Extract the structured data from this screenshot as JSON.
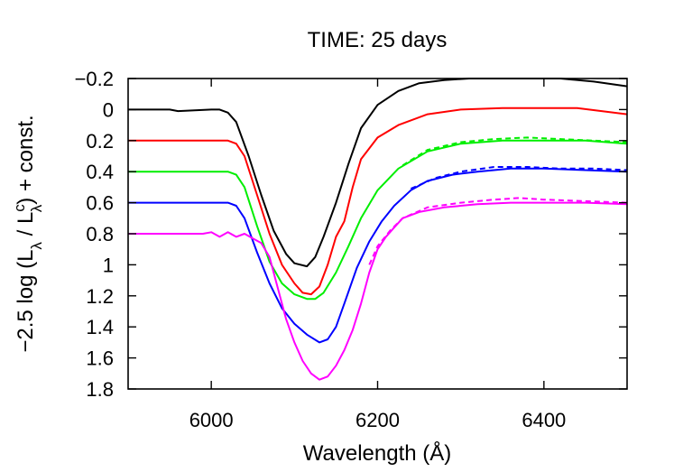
{
  "chart_data": {
    "type": "line",
    "title": "TIME: 25 days",
    "xlabel": "Wavelength (Å)",
    "ylabel_parts": {
      "prefix": "−2.5 log (L",
      "sub1": "λ",
      "mid": " / L",
      "sup": "c",
      "sub2": "λ",
      "suffix": ") + const."
    },
    "xlim": [
      5900,
      6500
    ],
    "ylim": [
      -0.2,
      1.8
    ],
    "y_inverted": true,
    "grid": false,
    "xticks": [
      6000,
      6200,
      6400
    ],
    "xtick_labels": [
      "6000",
      "6200",
      "6400"
    ],
    "yticks": [
      -0.2,
      0,
      0.2,
      0.4,
      0.6,
      0.8,
      1,
      1.2,
      1.4,
      1.6,
      1.8
    ],
    "ytick_labels": [
      "−0.2",
      "0",
      "0.2",
      "0.4",
      "0.6",
      "0.8",
      "1",
      "1.2",
      "1.4",
      "1.6",
      "1.8"
    ],
    "series": [
      {
        "color": "#000000",
        "dash": false,
        "points": [
          [
            5900,
            0
          ],
          [
            5950,
            0
          ],
          [
            5960,
            0.01
          ],
          [
            6000,
            0
          ],
          [
            6010,
            0
          ],
          [
            6020,
            0.02
          ],
          [
            6030,
            0.08
          ],
          [
            6045,
            0.3
          ],
          [
            6060,
            0.55
          ],
          [
            6075,
            0.78
          ],
          [
            6090,
            0.93
          ],
          [
            6100,
            0.99
          ],
          [
            6115,
            1.01
          ],
          [
            6125,
            0.95
          ],
          [
            6135,
            0.82
          ],
          [
            6150,
            0.6
          ],
          [
            6165,
            0.35
          ],
          [
            6180,
            0.12
          ],
          [
            6200,
            -0.03
          ],
          [
            6225,
            -0.12
          ],
          [
            6250,
            -0.17
          ],
          [
            6280,
            -0.19
          ],
          [
            6310,
            -0.2
          ],
          [
            6340,
            -0.2
          ],
          [
            6380,
            -0.2
          ],
          [
            6420,
            -0.2
          ],
          [
            6460,
            -0.18
          ],
          [
            6500,
            -0.15
          ]
        ]
      },
      {
        "color": "#ff0000",
        "dash": false,
        "points": [
          [
            5900,
            0.2
          ],
          [
            6000,
            0.2
          ],
          [
            6020,
            0.2
          ],
          [
            6030,
            0.22
          ],
          [
            6040,
            0.3
          ],
          [
            6055,
            0.55
          ],
          [
            6070,
            0.8
          ],
          [
            6085,
            1.0
          ],
          [
            6100,
            1.12
          ],
          [
            6110,
            1.18
          ],
          [
            6120,
            1.19
          ],
          [
            6130,
            1.14
          ],
          [
            6140,
            1.0
          ],
          [
            6150,
            0.82
          ],
          [
            6160,
            0.72
          ],
          [
            6170,
            0.5
          ],
          [
            6180,
            0.32
          ],
          [
            6200,
            0.18
          ],
          [
            6225,
            0.1
          ],
          [
            6260,
            0.03
          ],
          [
            6300,
            0
          ],
          [
            6350,
            -0.01
          ],
          [
            6400,
            -0.01
          ],
          [
            6440,
            -0.01
          ],
          [
            6500,
            0.03
          ]
        ]
      },
      {
        "color": "#00ee00",
        "dash": false,
        "points": [
          [
            5900,
            0.4
          ],
          [
            6020,
            0.4
          ],
          [
            6030,
            0.42
          ],
          [
            6040,
            0.5
          ],
          [
            6055,
            0.75
          ],
          [
            6070,
            0.98
          ],
          [
            6085,
            1.12
          ],
          [
            6100,
            1.19
          ],
          [
            6115,
            1.22
          ],
          [
            6125,
            1.22
          ],
          [
            6135,
            1.18
          ],
          [
            6150,
            1.05
          ],
          [
            6165,
            0.88
          ],
          [
            6180,
            0.7
          ],
          [
            6200,
            0.52
          ],
          [
            6225,
            0.38
          ],
          [
            6260,
            0.27
          ],
          [
            6300,
            0.22
          ],
          [
            6350,
            0.2
          ],
          [
            6400,
            0.2
          ],
          [
            6450,
            0.2
          ],
          [
            6500,
            0.22
          ]
        ]
      },
      {
        "color": "#00ee00",
        "dash": true,
        "points": [
          [
            6230,
            0.36
          ],
          [
            6260,
            0.26
          ],
          [
            6300,
            0.21
          ],
          [
            6340,
            0.19
          ],
          [
            6380,
            0.18
          ],
          [
            6420,
            0.19
          ],
          [
            6460,
            0.2
          ],
          [
            6500,
            0.21
          ]
        ]
      },
      {
        "color": "#0000ff",
        "dash": false,
        "points": [
          [
            5900,
            0.6
          ],
          [
            6010,
            0.6
          ],
          [
            6020,
            0.6
          ],
          [
            6030,
            0.62
          ],
          [
            6040,
            0.7
          ],
          [
            6055,
            0.92
          ],
          [
            6070,
            1.12
          ],
          [
            6085,
            1.28
          ],
          [
            6100,
            1.38
          ],
          [
            6115,
            1.45
          ],
          [
            6130,
            1.5
          ],
          [
            6140,
            1.48
          ],
          [
            6150,
            1.4
          ],
          [
            6160,
            1.25
          ],
          [
            6175,
            1.02
          ],
          [
            6190,
            0.85
          ],
          [
            6205,
            0.72
          ],
          [
            6220,
            0.62
          ],
          [
            6240,
            0.52
          ],
          [
            6260,
            0.46
          ],
          [
            6290,
            0.42
          ],
          [
            6320,
            0.4
          ],
          [
            6360,
            0.38
          ],
          [
            6400,
            0.38
          ],
          [
            6450,
            0.39
          ],
          [
            6500,
            0.4
          ]
        ]
      },
      {
        "color": "#0000ff",
        "dash": true,
        "points": [
          [
            6240,
            0.51
          ],
          [
            6270,
            0.44
          ],
          [
            6300,
            0.4
          ],
          [
            6340,
            0.37
          ],
          [
            6380,
            0.37
          ],
          [
            6420,
            0.38
          ],
          [
            6460,
            0.38
          ],
          [
            6500,
            0.39
          ]
        ]
      },
      {
        "color": "#ff00ff",
        "dash": false,
        "points": [
          [
            5900,
            0.8
          ],
          [
            5960,
            0.8
          ],
          [
            5990,
            0.8
          ],
          [
            6000,
            0.79
          ],
          [
            6010,
            0.82
          ],
          [
            6020,
            0.79
          ],
          [
            6030,
            0.82
          ],
          [
            6040,
            0.8
          ],
          [
            6050,
            0.83
          ],
          [
            6060,
            0.86
          ],
          [
            6070,
            0.95
          ],
          [
            6080,
            1.15
          ],
          [
            6090,
            1.35
          ],
          [
            6100,
            1.5
          ],
          [
            6110,
            1.62
          ],
          [
            6120,
            1.7
          ],
          [
            6130,
            1.74
          ],
          [
            6140,
            1.72
          ],
          [
            6150,
            1.65
          ],
          [
            6160,
            1.55
          ],
          [
            6170,
            1.42
          ],
          [
            6180,
            1.25
          ],
          [
            6190,
            1.05
          ],
          [
            6200,
            0.9
          ],
          [
            6210,
            0.82
          ],
          [
            6220,
            0.76
          ],
          [
            6230,
            0.7
          ],
          [
            6250,
            0.66
          ],
          [
            6280,
            0.63
          ],
          [
            6320,
            0.61
          ],
          [
            6360,
            0.6
          ],
          [
            6400,
            0.6
          ],
          [
            6450,
            0.6
          ],
          [
            6500,
            0.61
          ]
        ]
      },
      {
        "color": "#ff00ff",
        "dash": true,
        "points": [
          [
            6190,
            1.0
          ],
          [
            6200,
            0.88
          ],
          [
            6215,
            0.78
          ],
          [
            6230,
            0.7
          ],
          [
            6260,
            0.63
          ],
          [
            6300,
            0.6
          ],
          [
            6340,
            0.58
          ],
          [
            6370,
            0.57
          ],
          [
            6400,
            0.58
          ],
          [
            6450,
            0.59
          ],
          [
            6500,
            0.6
          ]
        ]
      }
    ]
  }
}
